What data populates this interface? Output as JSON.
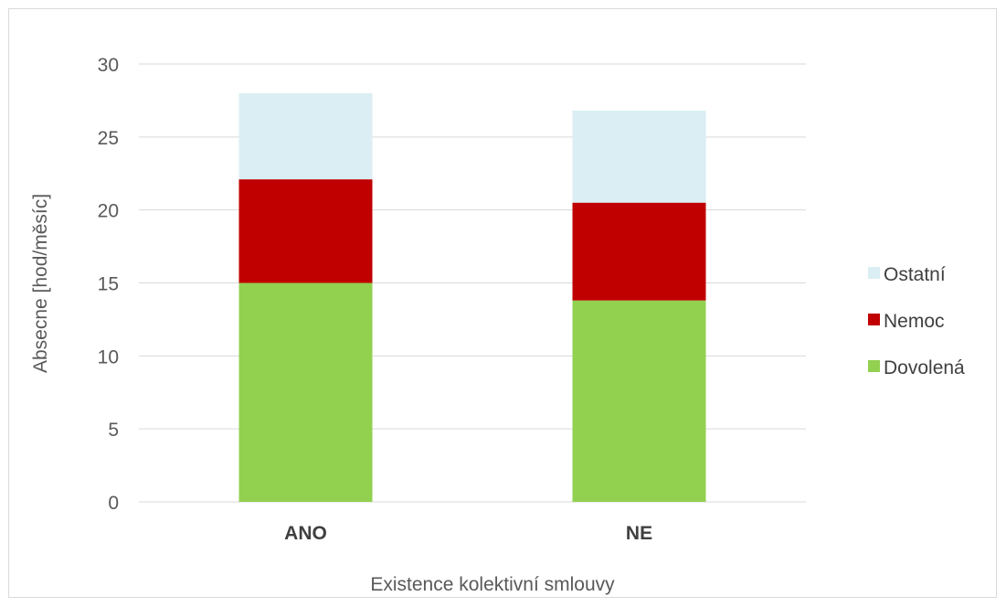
{
  "chart_data": {
    "type": "bar",
    "stacked": true,
    "categories": [
      "ANO",
      "NE"
    ],
    "series": [
      {
        "name": "Dovolená",
        "values": [
          15.0,
          13.8
        ],
        "color": "#92d050"
      },
      {
        "name": "Nemoc",
        "values": [
          7.1,
          6.7
        ],
        "color": "#c00000"
      },
      {
        "name": "Ostatní",
        "values": [
          5.9,
          6.3
        ],
        "color": "#daeef3"
      }
    ],
    "xlabel": "Existence kolektivní smlouvy",
    "ylabel": "Absecne [hod/měsíc]",
    "ylim": [
      0,
      30
    ],
    "yticks": [
      0,
      5,
      10,
      15,
      20,
      25,
      30
    ],
    "grid": true,
    "legend": "right",
    "legend_order": [
      "Ostatní",
      "Nemoc",
      "Dovolená"
    ],
    "gridline_color": "#d9d9d9"
  }
}
